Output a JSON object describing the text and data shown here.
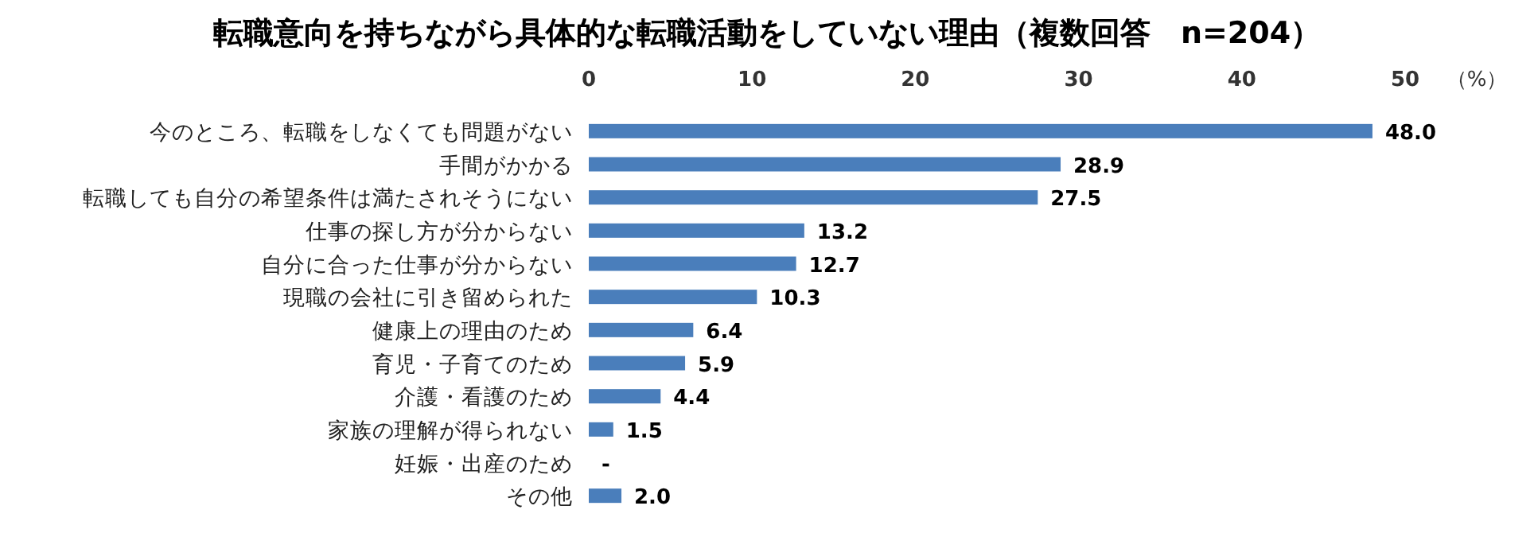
{
  "chart_data": {
    "type": "bar",
    "orientation": "horizontal",
    "title": "転職意向を持ちながら具体的な転職活動をしていない理由（複数回答　n=204）",
    "xlabel": "（%）",
    "categories": [
      "今のところ、転職をしなくても問題がない",
      "手間がかかる",
      "転職しても自分の希望条件は満たされそうにない",
      "仕事の探し方が分からない",
      "自分に合った仕事が分からない",
      "現職の会社に引き留められた",
      "健康上の理由のため",
      "育児・子育てのため",
      "介護・看護のため",
      "家族の理解が得られない",
      "妊娠・出産のため",
      "その他"
    ],
    "values": [
      48.0,
      28.9,
      27.5,
      13.2,
      12.7,
      10.3,
      6.4,
      5.9,
      4.4,
      1.5,
      null,
      2.0
    ],
    "value_labels": [
      "48.0",
      "28.9",
      "27.5",
      "13.2",
      "12.7",
      "10.3",
      "6.4",
      "5.9",
      "4.4",
      "1.5",
      "-",
      "2.0"
    ],
    "color": "#4a7ebb",
    "xlim": [
      0,
      50
    ],
    "xticks": [
      0,
      10,
      20,
      30,
      40,
      50
    ]
  }
}
